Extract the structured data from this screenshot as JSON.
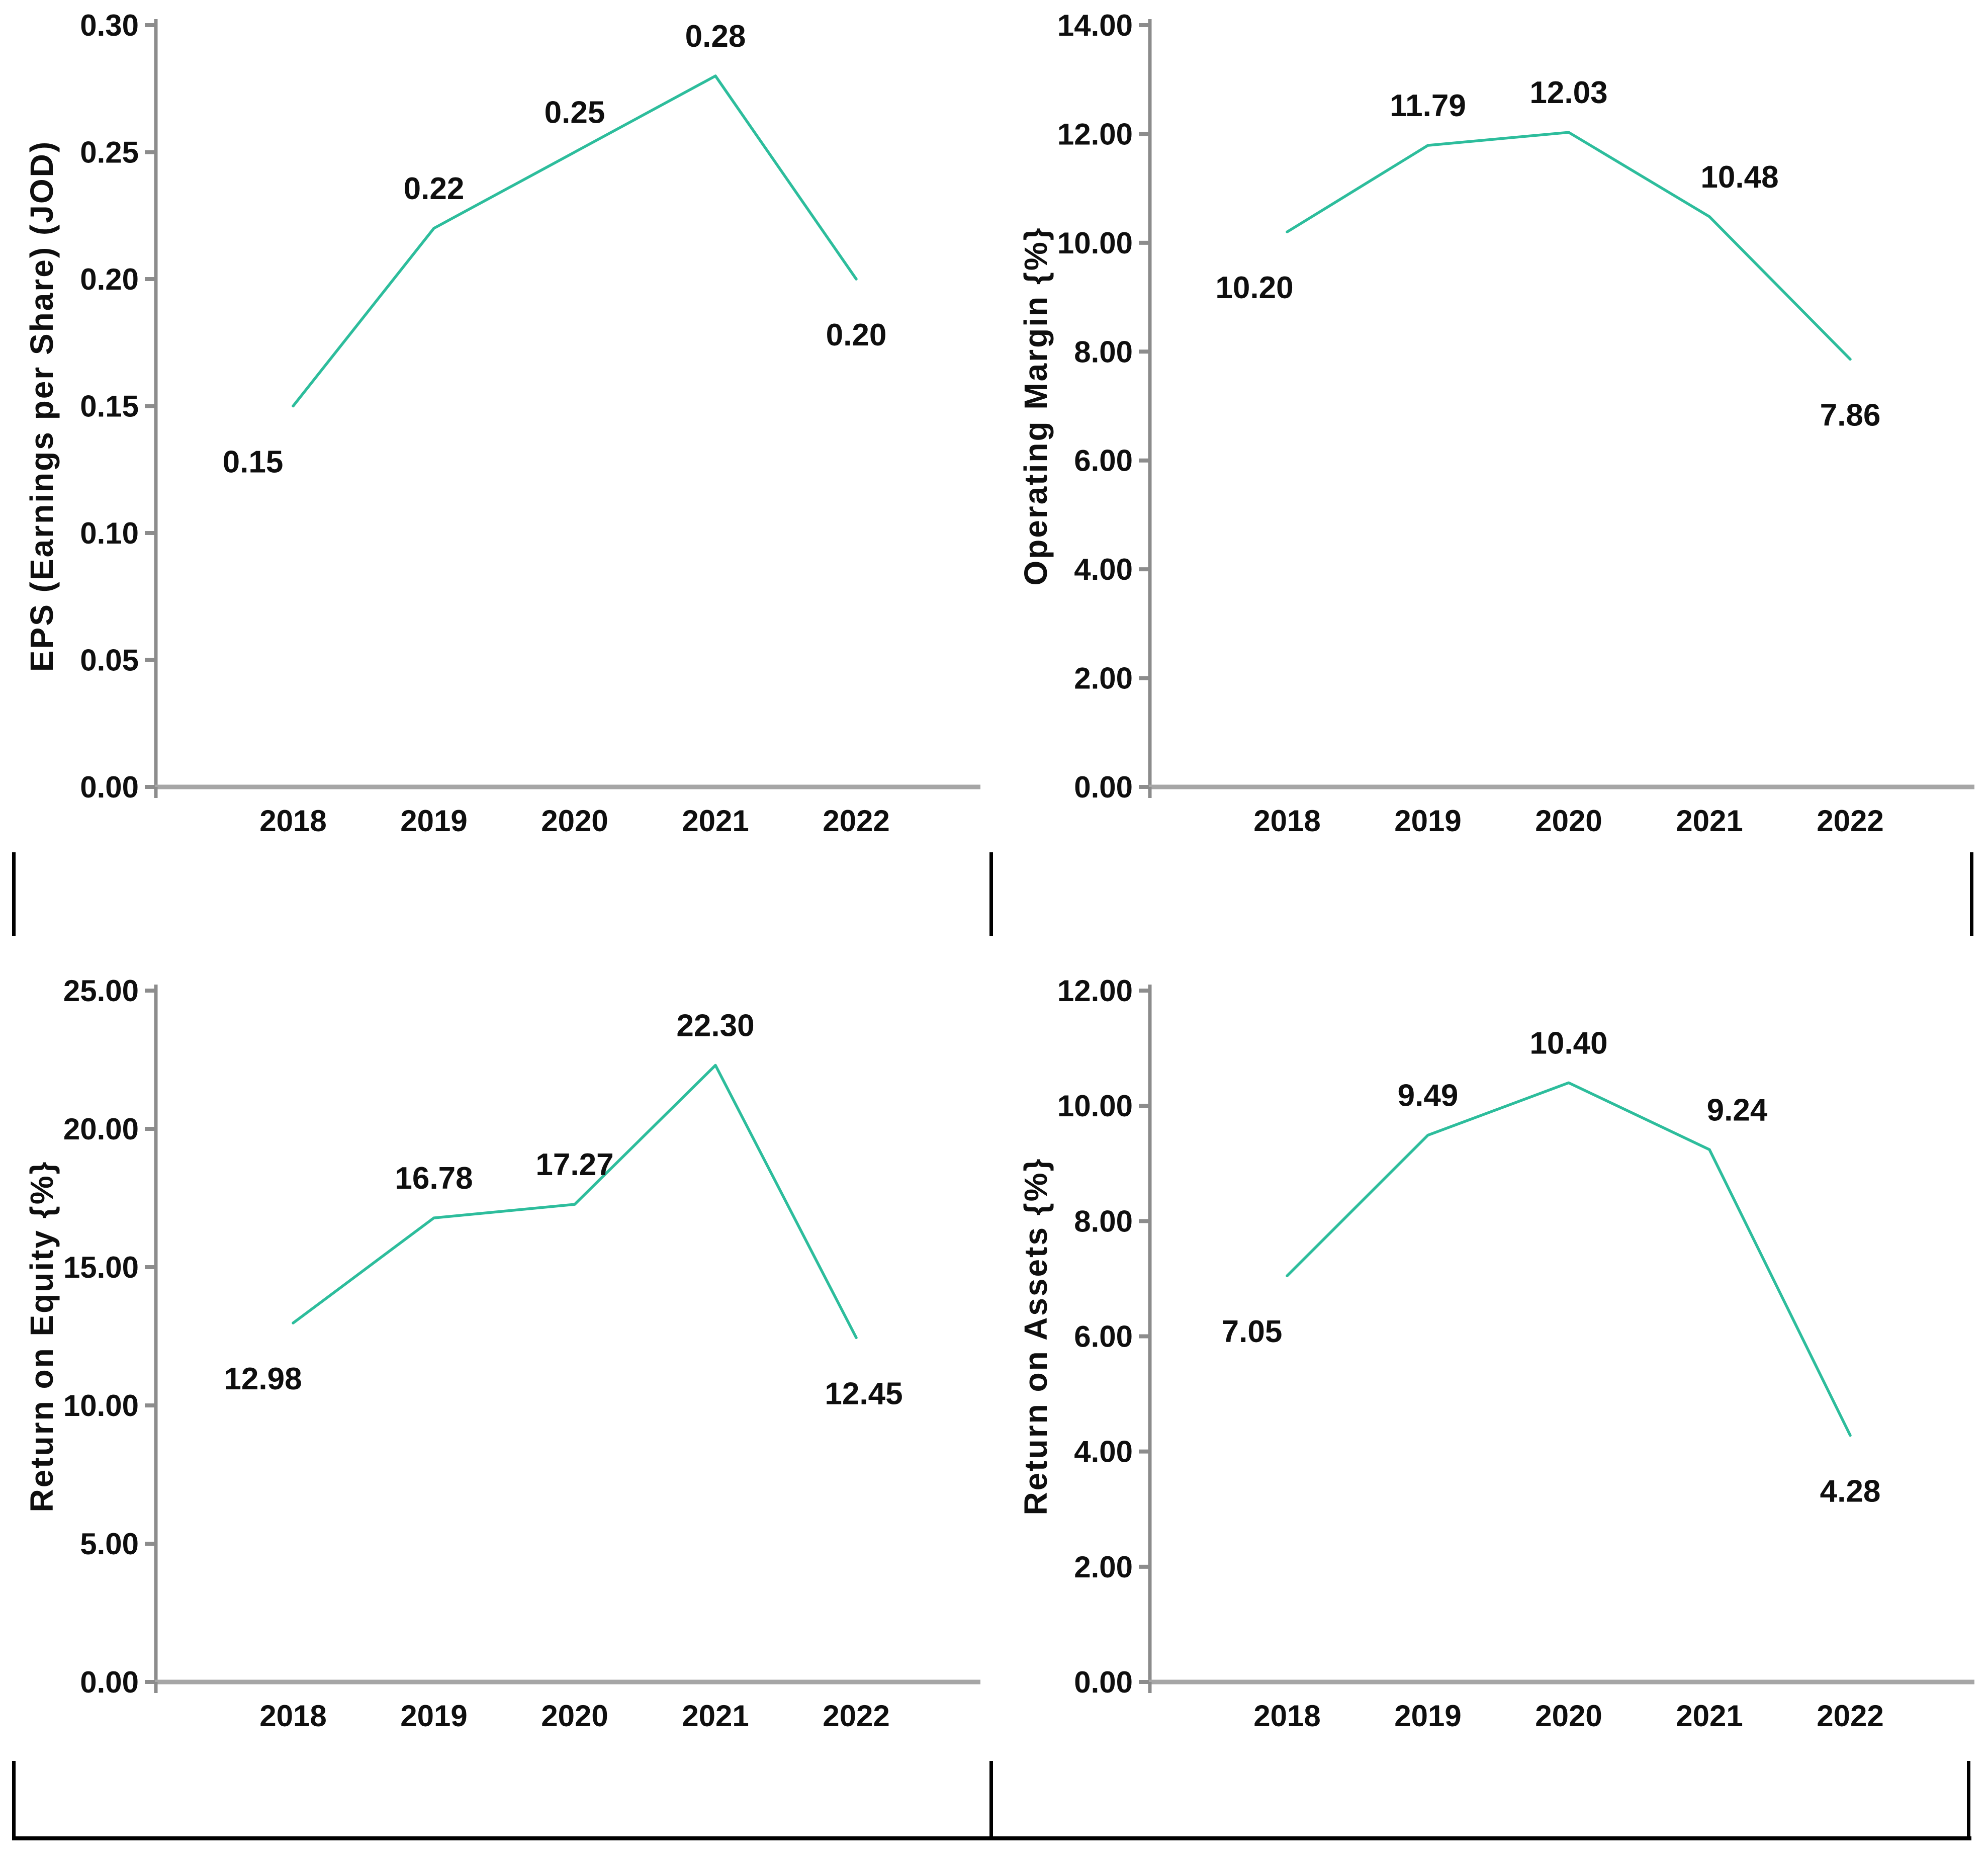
{
  "page": {
    "background": "#ffffff"
  },
  "colors": {
    "line": "#2dbd9c",
    "axis": "#a6a6a6",
    "axis_dark": "#8c8c8c",
    "tick": "#8c8c8c",
    "text": "#0f0f0f",
    "border_fragment": "#000000"
  },
  "chart_data": [
    {
      "type": "line",
      "title": "",
      "ylabel": "EPS (Earnings per Share) (JOD)",
      "xlabel": "",
      "categories": [
        "2018",
        "2019",
        "2020",
        "2021",
        "2022"
      ],
      "values": [
        0.15,
        0.22,
        0.25,
        0.28,
        0.2
      ],
      "point_labels": [
        "0.15",
        "0.22",
        "0.25",
        "0.28",
        "0.20"
      ],
      "label_layout": [
        {
          "side": "below",
          "dx": -80
        },
        {
          "side": "above",
          "dx": 0
        },
        {
          "side": "above",
          "dx": 0
        },
        {
          "side": "above",
          "dx": 0
        },
        {
          "side": "below",
          "dx": 0
        }
      ],
      "ylim": [
        0,
        0.3
      ],
      "y_step": 0.05,
      "y_tick_labels": [
        "0.00",
        "0.05",
        "0.10",
        "0.15",
        "0.20",
        "0.25",
        "0.30"
      ],
      "grid": false,
      "legend": "none"
    },
    {
      "type": "line",
      "title": "",
      "ylabel": "Operating Margin {%}",
      "xlabel": "",
      "categories": [
        "2018",
        "2019",
        "2020",
        "2021",
        "2022"
      ],
      "values": [
        10.2,
        11.79,
        12.03,
        10.48,
        7.86
      ],
      "point_labels": [
        "10.20",
        "11.79",
        "12.03",
        "10.48",
        "7.86"
      ],
      "label_layout": [
        {
          "side": "below",
          "dx": -65
        },
        {
          "side": "above",
          "dx": 0
        },
        {
          "side": "above",
          "dx": 0
        },
        {
          "side": "above",
          "dx": 60
        },
        {
          "side": "below",
          "dx": 0
        }
      ],
      "ylim": [
        0,
        14.0
      ],
      "y_step": 2.0,
      "y_tick_labels": [
        "0.00",
        "2.00",
        "4.00",
        "6.00",
        "8.00",
        "10.00",
        "12.00",
        "14.00"
      ],
      "grid": false,
      "legend": "none"
    },
    {
      "type": "line",
      "title": "",
      "ylabel": "Return on Equity {%}",
      "xlabel": "",
      "categories": [
        "2018",
        "2019",
        "2020",
        "2021",
        "2022"
      ],
      "values": [
        12.98,
        16.78,
        17.27,
        22.3,
        12.45
      ],
      "point_labels": [
        "12.98",
        "16.78",
        "17.27",
        "22.30",
        "12.45"
      ],
      "label_layout": [
        {
          "side": "below",
          "dx": -60
        },
        {
          "side": "above",
          "dx": 0
        },
        {
          "side": "above",
          "dx": 0
        },
        {
          "side": "above",
          "dx": 0
        },
        {
          "side": "below",
          "dx": 15
        }
      ],
      "ylim": [
        0,
        25.0
      ],
      "y_step": 5.0,
      "y_tick_labels": [
        "0.00",
        "5.00",
        "10.00",
        "15.00",
        "20.00",
        "25.00"
      ],
      "grid": false,
      "legend": "none"
    },
    {
      "type": "line",
      "title": "",
      "ylabel": "Return on Assets {%}",
      "xlabel": "",
      "categories": [
        "2018",
        "2019",
        "2020",
        "2021",
        "2022"
      ],
      "values": [
        7.05,
        9.49,
        10.4,
        9.24,
        4.28
      ],
      "point_labels": [
        "7.05",
        "9.49",
        "10.40",
        "9.24",
        "4.28"
      ],
      "label_layout": [
        {
          "side": "below",
          "dx": -70
        },
        {
          "side": "above",
          "dx": 0
        },
        {
          "side": "above",
          "dx": 0
        },
        {
          "side": "above",
          "dx": 55
        },
        {
          "side": "below",
          "dx": 0
        }
      ],
      "ylim": [
        0,
        12.0
      ],
      "y_step": 2.0,
      "y_tick_labels": [
        "0.00",
        "2.00",
        "4.00",
        "6.00",
        "8.00",
        "10.00",
        "12.00"
      ],
      "grid": false,
      "legend": "none"
    }
  ]
}
